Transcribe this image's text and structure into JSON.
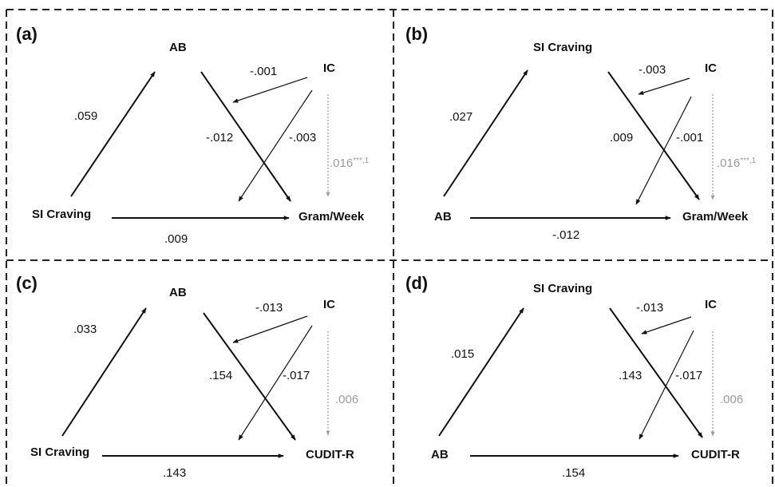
{
  "panels": [
    {
      "label": "(a)",
      "nodes": {
        "predictor": "SI Craving",
        "mediator": "AB",
        "moderator": "IC",
        "outcome": "Gram/Week"
      },
      "coefficients": {
        "predictor_to_mediator": ".059",
        "mediator_to_outcome": "-.012",
        "predictor_to_outcome": ".009",
        "moderator_to_a_path": "-.001",
        "moderator_to_c_path": "-.003",
        "moderator_to_outcome": ".016",
        "moderator_to_outcome_sig": "***,1"
      }
    },
    {
      "label": "(b)",
      "nodes": {
        "predictor": "AB",
        "mediator": "SI Craving",
        "moderator": "IC",
        "outcome": "Gram/Week"
      },
      "coefficients": {
        "predictor_to_mediator": ".027",
        "mediator_to_outcome": ".009",
        "predictor_to_outcome": "-.012",
        "moderator_to_a_path": "-.003",
        "moderator_to_c_path": "-.001",
        "moderator_to_outcome": ".016",
        "moderator_to_outcome_sig": "***,1"
      }
    },
    {
      "label": "(c)",
      "nodes": {
        "predictor": "SI Craving",
        "mediator": "AB",
        "moderator": "IC",
        "outcome": "CUDIT-R"
      },
      "coefficients": {
        "predictor_to_mediator": ".033",
        "mediator_to_outcome": ".154",
        "predictor_to_outcome": ".143",
        "moderator_to_a_path": "-.013",
        "moderator_to_c_path": "-.017",
        "moderator_to_outcome": ".006",
        "moderator_to_outcome_sig": ""
      }
    },
    {
      "label": "(d)",
      "nodes": {
        "predictor": "AB",
        "mediator": "SI Craving",
        "moderator": "IC",
        "outcome": "CUDIT-R"
      },
      "coefficients": {
        "predictor_to_mediator": ".015",
        "mediator_to_outcome": ".143",
        "predictor_to_outcome": ".154",
        "moderator_to_a_path": "-.013",
        "moderator_to_c_path": "-.017",
        "moderator_to_outcome": ".006",
        "moderator_to_outcome_sig": ""
      }
    }
  ]
}
